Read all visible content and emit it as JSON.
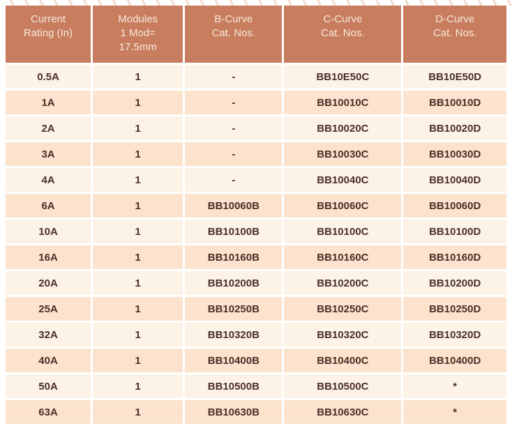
{
  "colors": {
    "page-bg": "#ffffff",
    "header-bg": "#c87d5e",
    "header-text": "#f6e8dc",
    "row-light": "#fcf3e6",
    "row-dark": "#fbe3cd",
    "body-text": "#4b2f27",
    "deco-line": "#f2d7c9"
  },
  "table": {
    "columns": [
      "Current\nRating (In)",
      "Modules\n1 Mod=\n17.5mm",
      "B-Curve\nCat. Nos.",
      "C-Curve\nCat. Nos.",
      "D-Curve\nCat. Nos."
    ],
    "rows": [
      [
        "0.5A",
        "1",
        "-",
        "BB10E50C",
        "BB10E50D"
      ],
      [
        "1A",
        "1",
        "-",
        "BB10010C",
        "BB10010D"
      ],
      [
        "2A",
        "1",
        "-",
        "BB10020C",
        "BB10020D"
      ],
      [
        "3A",
        "1",
        "-",
        "BB10030C",
        "BB10030D"
      ],
      [
        "4A",
        "1",
        "-",
        "BB10040C",
        "BB10040D"
      ],
      [
        "6A",
        "1",
        "BB10060B",
        "BB10060C",
        "BB10060D"
      ],
      [
        "10A",
        "1",
        "BB10100B",
        "BB10100C",
        "BB10100D"
      ],
      [
        "16A",
        "1",
        "BB10160B",
        "BB10160C",
        "BB10160D"
      ],
      [
        "20A",
        "1",
        "BB10200B",
        "BB10200C",
        "BB10200D"
      ],
      [
        "25A",
        "1",
        "BB10250B",
        "BB10250C",
        "BB10250D"
      ],
      [
        "32A",
        "1",
        "BB10320B",
        "BB10320C",
        "BB10320D"
      ],
      [
        "40A",
        "1",
        "BB10400B",
        "BB10400C",
        "BB10400D"
      ],
      [
        "50A",
        "1",
        "BB10500B",
        "BB10500C",
        "*"
      ],
      [
        "63A",
        "1",
        "BB10630B",
        "BB10630C",
        "*"
      ]
    ]
  }
}
